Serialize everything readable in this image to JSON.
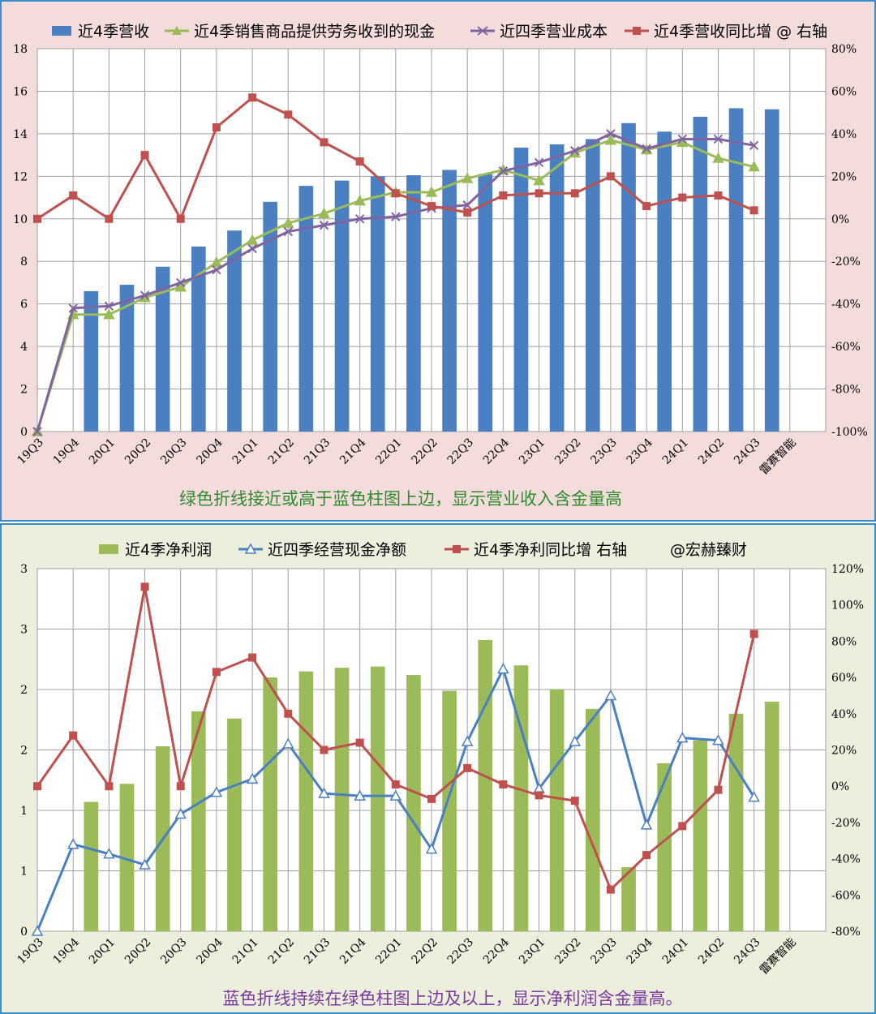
{
  "chart_data": [
    {
      "type": "bar",
      "categories": [
        "19Q3",
        "19Q4",
        "20Q1",
        "20Q2",
        "20Q3",
        "20Q4",
        "21Q1",
        "21Q2",
        "21Q3",
        "21Q4",
        "22Q1",
        "22Q2",
        "22Q3",
        "22Q4",
        "23Q1",
        "23Q2",
        "23Q3",
        "23Q4",
        "24Q1",
        "24Q2",
        "24Q3"
      ],
      "extra_category_label": "雷赛智能",
      "ylim": [
        0,
        18
      ],
      "yticks": [
        0,
        2,
        4,
        6,
        8,
        10,
        12,
        14,
        16,
        18
      ],
      "y2lim": [
        -100,
        80
      ],
      "y2ticks": [
        -100,
        -80,
        -60,
        -40,
        -20,
        0,
        20,
        40,
        60,
        80
      ],
      "y2_tick_suffix": "%",
      "grid": true,
      "legend_position": "top",
      "caption": "绿色折线接近或高于蓝色柱图上边，显示营业收入含金量高",
      "series": [
        {
          "name": "近4季营收",
          "kind": "bar",
          "axis": "left",
          "color": "#4a7fc1",
          "values": [
            null,
            6.6,
            6.9,
            7.75,
            8.7,
            9.45,
            10.8,
            11.55,
            11.8,
            12.0,
            12.05,
            12.3,
            12.1,
            13.35,
            13.5,
            13.75,
            14.5,
            14.1,
            14.8,
            15.2,
            15.15
          ]
        },
        {
          "name": "近4季销售商品提供劳务收到的现金",
          "kind": "line",
          "axis": "left",
          "color": "#9bbb59",
          "marker": "triangle",
          "values": [
            0,
            5.5,
            5.5,
            6.3,
            6.8,
            7.95,
            9.0,
            9.8,
            10.25,
            10.85,
            11.25,
            11.25,
            11.9,
            12.3,
            11.8,
            13.1,
            13.7,
            13.25,
            13.6,
            12.85,
            12.45
          ]
        },
        {
          "name": "近四季营业成本",
          "kind": "line",
          "axis": "left",
          "color": "#8064a2",
          "marker": "x",
          "values": [
            0,
            5.8,
            5.9,
            6.4,
            7.0,
            7.6,
            8.6,
            9.4,
            9.7,
            10.0,
            10.1,
            10.5,
            10.65,
            12.25,
            12.65,
            13.2,
            14.0,
            13.3,
            13.75,
            13.75,
            13.45
          ]
        },
        {
          "name": "近4季营收同比增 @ 右轴",
          "kind": "line",
          "axis": "right",
          "color": "#c0504d",
          "marker": "square",
          "values": [
            0,
            11,
            0,
            30,
            0,
            43,
            57,
            49,
            36,
            27,
            12,
            6,
            3,
            11,
            12,
            12,
            20,
            6,
            10,
            11,
            4
          ]
        }
      ]
    },
    {
      "type": "bar",
      "categories": [
        "19Q3",
        "19Q4",
        "20Q1",
        "20Q2",
        "20Q3",
        "20Q4",
        "21Q1",
        "21Q2",
        "21Q3",
        "21Q4",
        "22Q1",
        "22Q2",
        "22Q3",
        "22Q4",
        "23Q1",
        "23Q2",
        "23Q3",
        "23Q4",
        "24Q1",
        "24Q2",
        "24Q3"
      ],
      "extra_category_label": "雷赛智能",
      "ylim": [
        0,
        3
      ],
      "yticks": [
        0,
        0.5,
        1,
        1.5,
        2,
        2.5,
        3
      ],
      "ytick_labels": [
        "0",
        "1",
        "1",
        "2",
        "2",
        "3",
        "3"
      ],
      "y2lim": [
        -80,
        120
      ],
      "y2ticks": [
        -80,
        -60,
        -40,
        -20,
        0,
        20,
        40,
        60,
        80,
        100,
        120
      ],
      "y2_tick_suffix": "%",
      "grid": true,
      "legend_position": "top",
      "caption": "蓝色折线持续在绿色柱图上边及以上，显示净利润含金量高。",
      "series": [
        {
          "name": "近4季净利润",
          "kind": "bar",
          "axis": "left",
          "color": "#9bbb59",
          "values": [
            null,
            1.07,
            1.22,
            1.53,
            1.82,
            1.76,
            2.1,
            2.15,
            2.18,
            2.19,
            2.12,
            1.99,
            2.41,
            2.2,
            2.0,
            1.84,
            0.53,
            1.39,
            1.58,
            1.8,
            1.9
          ]
        },
        {
          "name": "近四季经营现金净额",
          "kind": "line",
          "axis": "left",
          "color": "#4a7fc1",
          "marker": "triangle",
          "values": [
            0,
            0.72,
            0.64,
            0.55,
            0.97,
            1.15,
            1.26,
            1.55,
            1.14,
            1.12,
            1.12,
            0.68,
            1.57,
            2.17,
            1.18,
            1.57,
            1.95,
            0.88,
            1.6,
            1.58,
            1.11
          ]
        },
        {
          "name": "近4季净利同比增 右轴",
          "kind": "line",
          "axis": "right",
          "color": "#c0504d",
          "marker": "square",
          "values": [
            0,
            28,
            0,
            110,
            0,
            63,
            71,
            40,
            20,
            24,
            1,
            -7,
            10,
            1,
            -5,
            -8,
            -57,
            -38,
            -22,
            -2,
            84
          ]
        }
      ]
    }
  ],
  "watermark": "@宏赫臻财"
}
